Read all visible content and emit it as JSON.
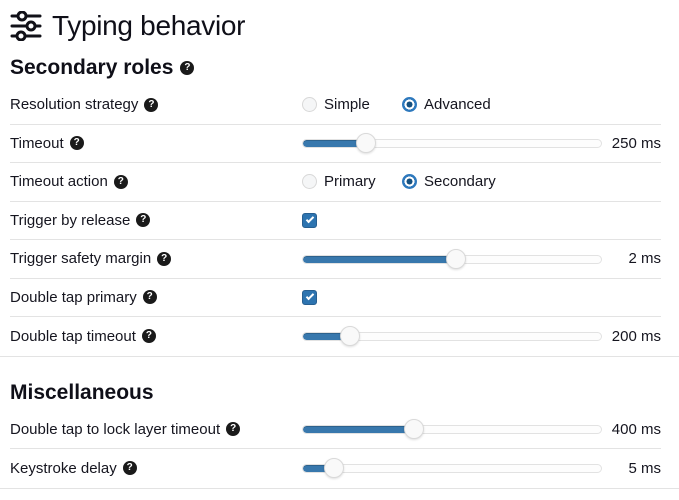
{
  "page": {
    "title": "Typing behavior"
  },
  "icons": {
    "help_glyph": "?",
    "app_icon": "sliders-icon"
  },
  "theme": {
    "accent_blue": "#3878ad",
    "radio_ring_blue": "#2e79bd",
    "radio_center_blue": "#15507f",
    "checkbox_blue": "#2d74b0",
    "divider_gray": "#e3e3e3",
    "text_color": "#15151f",
    "help_badge_bg": "#1a1a1a"
  },
  "sections": [
    {
      "heading": "Secondary roles",
      "heading_help": true,
      "rows": [
        {
          "type": "radio",
          "label": "Resolution strategy",
          "help": true,
          "options": [
            "Simple",
            "Advanced"
          ],
          "selected": "Advanced"
        },
        {
          "type": "slider",
          "label": "Timeout",
          "help": true,
          "value": "250 ms",
          "fill_percent": 21.3
        },
        {
          "type": "radio",
          "label": "Timeout action",
          "help": true,
          "options": [
            "Primary",
            "Secondary"
          ],
          "selected": "Secondary"
        },
        {
          "type": "checkbox",
          "label": "Trigger by release",
          "help": true,
          "checked": true
        },
        {
          "type": "slider",
          "label": "Trigger safety margin",
          "help": true,
          "value": "2 ms",
          "fill_percent": 51.3
        },
        {
          "type": "checkbox",
          "label": "Double tap primary",
          "help": true,
          "checked": true
        },
        {
          "type": "slider",
          "label": "Double tap timeout",
          "help": true,
          "value": "200 ms",
          "fill_percent": 16
        }
      ]
    },
    {
      "heading": "Miscellaneous",
      "heading_help": false,
      "rows": [
        {
          "type": "slider",
          "label": "Double tap to lock layer timeout",
          "help": true,
          "value": "400 ms",
          "fill_percent": 37.3
        },
        {
          "type": "slider",
          "label": "Keystroke delay",
          "help": true,
          "value": "5 ms",
          "fill_percent": 10.7
        }
      ]
    }
  ]
}
